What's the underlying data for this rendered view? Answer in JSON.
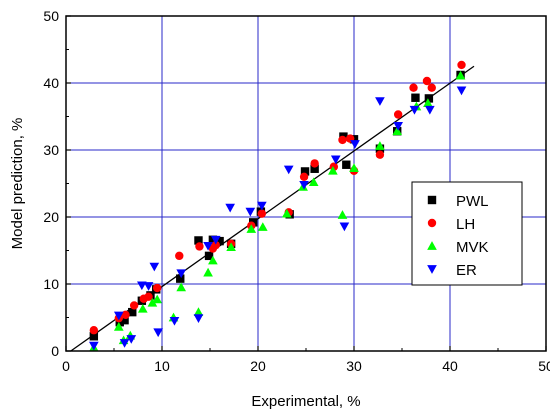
{
  "chart_data": {
    "type": "scatter",
    "title": "",
    "xlabel": "Experimental, %",
    "ylabel": "Model prediction, %",
    "xlim": [
      0,
      50
    ],
    "ylim": [
      0,
      50
    ],
    "xticks": [
      0,
      10,
      20,
      30,
      40,
      50
    ],
    "yticks": [
      0,
      10,
      20,
      30,
      40,
      50
    ],
    "grid": true,
    "legend_position": "right",
    "colors": {
      "grid": "#2828c8",
      "fit_line": "#000000",
      "PWL": "#000000",
      "LH": "#ff0000",
      "MVK": "#00ff00",
      "ER": "#0000ff"
    },
    "fit_line": {
      "x": [
        0.5,
        42.5
      ],
      "y": [
        0,
        42.5
      ]
    },
    "series": [
      {
        "name": "PWL",
        "marker": "square",
        "x": [
          2.9,
          5.6,
          6.1,
          6.9,
          7.9,
          8.8,
          9.4,
          11.9,
          13.8,
          14.9,
          15.3,
          16.0,
          17.2,
          19.5,
          20.3,
          23.3,
          24.9,
          25.9,
          28.9,
          29.2,
          30.0,
          32.7,
          34.5,
          36.4,
          37.8,
          41.1
        ],
        "y": [
          2.2,
          4.3,
          4.6,
          5.8,
          7.5,
          8.3,
          9.2,
          10.8,
          16.5,
          14.2,
          16.6,
          16.4,
          16.0,
          19.2,
          20.8,
          20.4,
          26.8,
          27.2,
          32.0,
          27.8,
          31.6,
          30.2,
          32.8,
          37.8,
          37.7,
          41.2
        ]
      },
      {
        "name": "LH",
        "marker": "circle",
        "x": [
          2.9,
          5.5,
          6.2,
          7.1,
          8.1,
          8.6,
          9.5,
          11.8,
          13.9,
          15.3,
          15.6,
          17.2,
          19.3,
          20.4,
          23.2,
          24.8,
          25.9,
          27.9,
          28.8,
          29.6,
          30.0,
          32.7,
          34.6,
          36.2,
          37.6,
          38.1,
          41.2
        ],
        "y": [
          3.1,
          4.9,
          5.4,
          6.8,
          7.8,
          8.1,
          9.4,
          14.2,
          15.6,
          15.3,
          15.8,
          16.0,
          18.7,
          20.5,
          20.7,
          26.0,
          28.0,
          27.5,
          31.5,
          31.7,
          26.9,
          29.3,
          35.3,
          39.3,
          40.3,
          39.3,
          42.7
        ]
      },
      {
        "name": "MVK",
        "marker": "triangle-up",
        "x": [
          2.9,
          5.5,
          6.0,
          6.7,
          8.0,
          9.0,
          9.5,
          11.2,
          12.0,
          13.8,
          14.8,
          15.3,
          17.2,
          19.3,
          20.5,
          23.0,
          24.7,
          25.8,
          27.8,
          28.8,
          30.0,
          32.7,
          34.5,
          36.5,
          37.7,
          41.1
        ],
        "y": [
          0.5,
          3.6,
          1.6,
          2.3,
          6.3,
          7.2,
          7.7,
          5.0,
          9.5,
          5.8,
          11.7,
          13.5,
          15.5,
          18.2,
          18.5,
          20.5,
          24.5,
          25.2,
          26.9,
          20.3,
          27.3,
          30.6,
          32.8,
          36.5,
          37.0,
          41.1
        ]
      },
      {
        "name": "ER",
        "marker": "triangle-down",
        "x": [
          2.9,
          5.5,
          6.1,
          6.8,
          7.9,
          8.6,
          9.2,
          9.6,
          11.3,
          12.0,
          13.8,
          14.8,
          15.6,
          17.1,
          19.2,
          20.4,
          23.2,
          24.8,
          28.1,
          29.0,
          30.1,
          32.7,
          34.6,
          36.3,
          37.9,
          41.2
        ],
        "y": [
          0.8,
          5.3,
          1.2,
          1.8,
          9.8,
          9.7,
          12.6,
          2.8,
          4.5,
          11.6,
          4.9,
          15.7,
          16.6,
          21.4,
          20.8,
          21.7,
          27.1,
          24.8,
          28.6,
          18.6,
          30.9,
          37.3,
          33.6,
          36.0,
          36.0,
          38.9
        ]
      }
    ]
  }
}
